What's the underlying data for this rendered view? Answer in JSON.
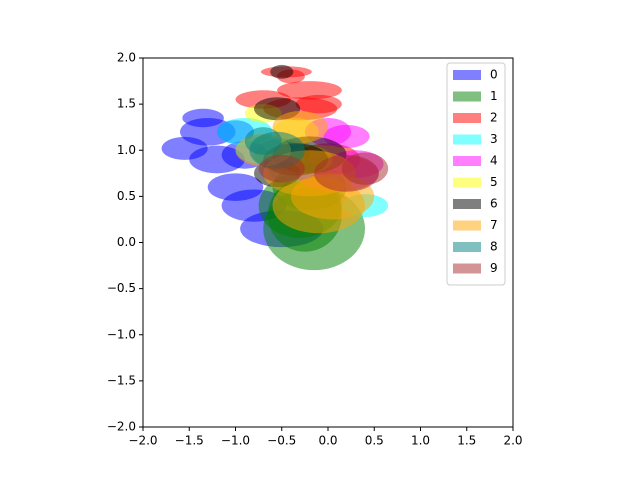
{
  "chart_data": {
    "type": "ellipse",
    "xlim": [
      -2,
      2
    ],
    "ylim": [
      -2,
      2
    ],
    "xticks": [
      {
        "value": -2,
        "label": "−2.0"
      },
      {
        "value": -1.5,
        "label": "−1.5"
      },
      {
        "value": -1,
        "label": "−1.0"
      },
      {
        "value": -0.5,
        "label": "−0.5"
      },
      {
        "value": 0,
        "label": "0.0"
      },
      {
        "value": 0.5,
        "label": "0.5"
      },
      {
        "value": 1,
        "label": "1.0"
      },
      {
        "value": 1.5,
        "label": "1.5"
      },
      {
        "value": 2,
        "label": "2.0"
      }
    ],
    "yticks": [
      {
        "value": -2,
        "label": "−2.0"
      },
      {
        "value": -1.5,
        "label": "−1.5"
      },
      {
        "value": -1,
        "label": "−1.0"
      },
      {
        "value": -0.5,
        "label": "−0.5"
      },
      {
        "value": 0,
        "label": "0.0"
      },
      {
        "value": 0.5,
        "label": "0.5"
      },
      {
        "value": 1,
        "label": "1.0"
      },
      {
        "value": 1.5,
        "label": "1.5"
      },
      {
        "value": 2,
        "label": "2.0"
      }
    ],
    "legend": "upper right",
    "alpha": 0.5,
    "series": [
      {
        "name": "0",
        "color": "#0000ff",
        "x": [
          -1.35,
          -1.3,
          -1.55,
          -1.2,
          -1.0,
          -0.8,
          -0.5,
          -1.0,
          -0.9
        ],
        "y": [
          1.35,
          1.2,
          1.02,
          0.9,
          0.6,
          0.4,
          0.15,
          1.2,
          0.95
        ],
        "width": [
          0.45,
          0.6,
          0.5,
          0.6,
          0.6,
          0.7,
          0.9,
          0.4,
          0.5
        ],
        "height": [
          0.2,
          0.3,
          0.25,
          0.3,
          0.3,
          0.35,
          0.4,
          0.25,
          0.3
        ]
      },
      {
        "name": "1",
        "color": "#008000",
        "x": [
          -0.15,
          -0.3,
          -0.2,
          -0.5,
          -0.25
        ],
        "y": [
          0.15,
          0.4,
          0.6,
          0.95,
          0.3
        ],
        "width": [
          1.1,
          0.9,
          0.8,
          0.6,
          0.8
        ],
        "height": [
          0.9,
          0.7,
          0.5,
          0.35,
          0.8
        ]
      },
      {
        "name": "2",
        "color": "#ff0000",
        "x": [
          -0.45,
          -0.4,
          -0.2,
          -0.7,
          -0.3,
          -0.1,
          0.0
        ],
        "y": [
          1.85,
          1.8,
          1.65,
          1.55,
          1.45,
          1.5,
          0.9
        ],
        "width": [
          0.55,
          0.3,
          0.7,
          0.6,
          0.8,
          0.5,
          0.7
        ],
        "height": [
          0.12,
          0.15,
          0.2,
          0.2,
          0.25,
          0.2,
          0.35
        ]
      },
      {
        "name": "3",
        "color": "#00ffff",
        "x": [
          -0.9,
          0.4,
          -0.7,
          -0.4
        ],
        "y": [
          1.2,
          0.4,
          1.0,
          0.8
        ],
        "width": [
          0.6,
          0.5,
          0.6,
          0.5
        ],
        "height": [
          0.3,
          0.25,
          0.3,
          0.3
        ]
      },
      {
        "name": "4",
        "color": "#ff00ff",
        "x": [
          0.0,
          0.2,
          0.1,
          0.3
        ],
        "y": [
          1.2,
          1.15,
          0.75,
          0.85
        ],
        "width": [
          0.5,
          0.5,
          0.9,
          0.6
        ],
        "height": [
          0.3,
          0.25,
          0.4,
          0.3
        ]
      },
      {
        "name": "5",
        "color": "#ffff00",
        "x": [
          -0.35,
          -0.7,
          -0.2
        ],
        "y": [
          1.2,
          1.4,
          0.9
        ],
        "width": [
          0.5,
          0.4,
          0.5
        ],
        "height": [
          0.3,
          0.2,
          0.3
        ]
      },
      {
        "name": "6",
        "color": "#000000",
        "x": [
          -0.5,
          -0.55,
          -0.35,
          -0.2,
          -0.55
        ],
        "y": [
          1.85,
          1.45,
          0.9,
          0.95,
          0.75
        ],
        "width": [
          0.25,
          0.5,
          0.7,
          0.8,
          0.5
        ],
        "height": [
          0.15,
          0.25,
          0.35,
          0.4,
          0.3
        ]
      },
      {
        "name": "7",
        "color": "#ffa500",
        "x": [
          -0.3,
          -0.7,
          -0.2,
          0.05,
          -0.1
        ],
        "y": [
          1.25,
          1.0,
          0.75,
          0.5,
          0.4
        ],
        "width": [
          0.6,
          0.6,
          1.0,
          0.9,
          1.0
        ],
        "height": [
          0.35,
          0.35,
          0.5,
          0.5,
          0.6
        ]
      },
      {
        "name": "8",
        "color": "#008080",
        "x": [
          -0.55,
          -0.7
        ],
        "y": [
          1.0,
          1.1
        ],
        "width": [
          0.6,
          0.4
        ],
        "height": [
          0.4,
          0.3
        ]
      },
      {
        "name": "9",
        "color": "#a52a2a",
        "x": [
          0.4,
          0.2,
          -0.5
        ],
        "y": [
          0.8,
          0.75,
          0.8
        ],
        "width": [
          0.5,
          0.7,
          0.5
        ],
        "height": [
          0.35,
          0.4,
          0.3
        ]
      }
    ]
  }
}
